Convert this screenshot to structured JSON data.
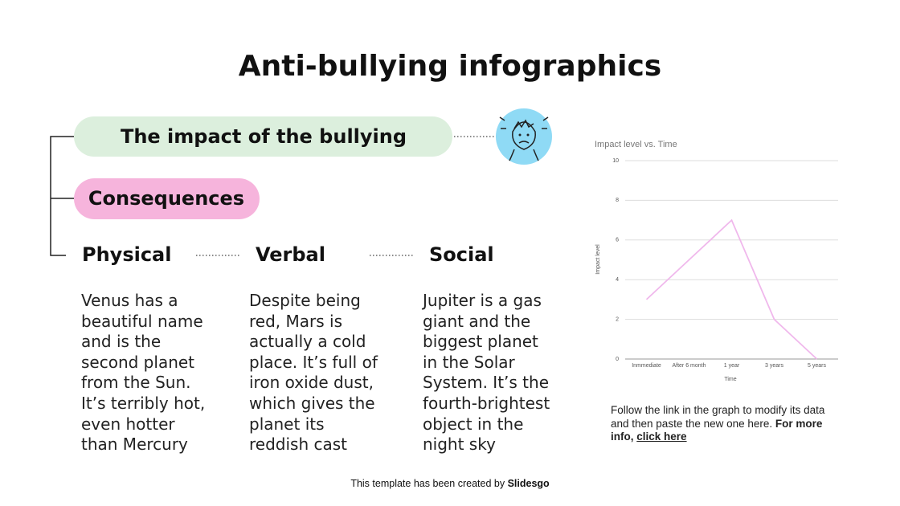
{
  "title": "Anti-bullying infographics",
  "impact_label": "The impact of the bullying",
  "consequences_label": "Consequences",
  "columns": [
    {
      "heading": "Physical",
      "lines": [
        "Venus has a",
        "beautiful name",
        "and is the",
        "second planet",
        "from the Sun.",
        "It’s terribly hot,",
        "even hotter",
        "than Mercury"
      ]
    },
    {
      "heading": "Verbal",
      "lines": [
        "Despite being",
        "red, Mars is",
        "actually a cold",
        "place. It’s full of",
        "iron oxide dust,",
        "which gives the",
        "planet its",
        "reddish cast"
      ]
    },
    {
      "heading": "Social",
      "lines": [
        "Jupiter is a gas",
        "giant and the",
        "biggest planet",
        "in the Solar",
        "System. It’s the",
        "fourth-brightest",
        "object in the",
        "night sky"
      ]
    }
  ],
  "chart_data": {
    "type": "line",
    "title": "Impact level vs. Time",
    "x_label": "Time",
    "y_label": "Impact level",
    "categories": [
      "Inmmediate",
      "After 6 month",
      "1 year",
      "3 years",
      "5 years"
    ],
    "values": [
      3,
      5,
      7,
      2,
      0
    ],
    "color": "#f0b8ec",
    "ylim": [
      0,
      10
    ],
    "yticks": [
      0,
      2,
      4,
      6,
      8,
      10
    ],
    "grid": true
  },
  "caption": {
    "text": "Follow the link in the graph to modify its data and then paste the new one here.",
    "bold": "For more info,",
    "link": "click here"
  },
  "footer": {
    "text": "This template has been created by",
    "brand": "Slidesgo"
  }
}
